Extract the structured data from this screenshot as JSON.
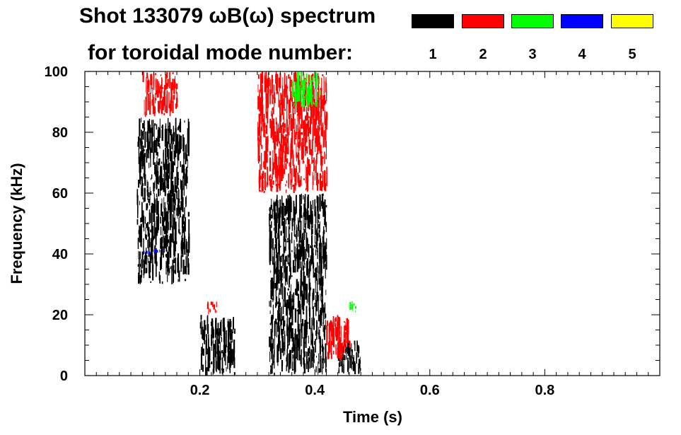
{
  "chart_data": {
    "type": "heatmap",
    "title": "Shot 133079 ωB(ω) spectrum",
    "legend_title": "for toroidal mode number:",
    "xlabel": "Time (s)",
    "ylabel": "Frequency (kHz)",
    "xlim": [
      0.0,
      1.0
    ],
    "ylim": [
      0,
      100
    ],
    "x_ticks": [
      0.2,
      0.4,
      0.6,
      0.8
    ],
    "x_tick_labels": [
      "0.2",
      "0.4",
      "0.6",
      "0.8"
    ],
    "y_ticks": [
      0,
      20,
      40,
      60,
      80,
      100
    ],
    "y_tick_labels": [
      "0",
      "20",
      "40",
      "60",
      "80",
      "100"
    ],
    "legend": [
      {
        "label": "1",
        "color": "#000000"
      },
      {
        "label": "2",
        "color": "#ff0000"
      },
      {
        "label": "3",
        "color": "#00ff00"
      },
      {
        "label": "4",
        "color": "#0000ff"
      },
      {
        "label": "5",
        "color": "#ffff00"
      }
    ],
    "series": [
      {
        "mode": "1",
        "color": "#000000",
        "regions": [
          {
            "t": [
              0.09,
              0.18
            ],
            "f": [
              30,
              85
            ]
          },
          {
            "t": [
              0.2,
              0.26
            ],
            "f": [
              0,
              20
            ]
          },
          {
            "t": [
              0.32,
              0.42
            ],
            "f": [
              0,
              60
            ]
          },
          {
            "t": [
              0.44,
              0.48
            ],
            "f": [
              0,
              12
            ]
          }
        ]
      },
      {
        "mode": "2",
        "color": "#ff0000",
        "regions": [
          {
            "t": [
              0.1,
              0.16
            ],
            "f": [
              85,
              100
            ]
          },
          {
            "t": [
              0.21,
              0.23
            ],
            "f": [
              20,
              25
            ]
          },
          {
            "t": [
              0.3,
              0.42
            ],
            "f": [
              60,
              100
            ]
          },
          {
            "t": [
              0.42,
              0.46
            ],
            "f": [
              5,
              20
            ]
          }
        ]
      },
      {
        "mode": "3",
        "color": "#00ff00",
        "regions": [
          {
            "t": [
              0.36,
              0.41
            ],
            "f": [
              88,
              100
            ]
          },
          {
            "t": [
              0.46,
              0.47
            ],
            "f": [
              20,
              25
            ]
          }
        ]
      },
      {
        "mode": "4",
        "color": "#0000ff",
        "regions": [
          {
            "t": [
              0.1,
              0.14
            ],
            "f": [
              40,
              42
            ]
          }
        ]
      },
      {
        "mode": "5",
        "color": "#ffff00",
        "regions": []
      }
    ]
  }
}
